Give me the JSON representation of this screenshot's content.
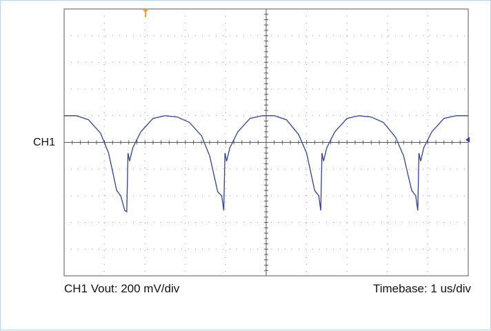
{
  "channel_label": "CH1",
  "caption_left": "CH1 Vout: 200 mV/div",
  "caption_right": "Timebase: 1 us/div",
  "colors": {
    "trace": "#2d3f9c",
    "trigger_marker": "#f0a030",
    "grid": "#8a8a8a",
    "frame": "#555555"
  },
  "chart_data": {
    "type": "line",
    "title": "",
    "grid": true,
    "divisions": {
      "x": 10,
      "y": 10
    },
    "xlim": [
      0,
      10
    ],
    "ylim": [
      -5,
      5
    ],
    "x_units": "div",
    "y_units": "div",
    "series": [
      {
        "x": [
          0,
          0.3,
          0.6,
          0.9,
          1.1,
          1.3,
          1.4,
          1.5,
          1.55,
          1.58,
          1.62,
          1.7,
          1.9,
          2.2,
          2.5,
          2.8,
          3.1,
          3.4,
          3.6,
          3.8,
          3.9,
          3.95,
          3.98,
          4.02,
          4.1,
          4.3,
          4.6,
          4.9,
          5.2,
          5.5,
          5.8,
          6.0,
          6.2,
          6.3,
          6.35,
          6.38,
          6.42,
          6.5,
          6.7,
          7.0,
          7.3,
          7.6,
          7.9,
          8.2,
          8.4,
          8.6,
          8.7,
          8.75,
          8.78,
          8.82,
          8.9,
          9.1,
          9.4,
          9.7,
          10.0
        ],
        "y": [
          1.0,
          1.0,
          0.85,
          0.35,
          -0.4,
          -1.8,
          -2.0,
          -2.55,
          -2.6,
          -0.4,
          -0.7,
          -0.2,
          0.4,
          0.9,
          1.0,
          0.95,
          0.75,
          0.25,
          -0.5,
          -1.85,
          -2.0,
          -2.55,
          -0.4,
          -0.7,
          -0.2,
          0.4,
          0.9,
          1.0,
          1.0,
          0.85,
          0.3,
          -0.4,
          -1.8,
          -2.0,
          -2.55,
          -0.4,
          -0.7,
          -0.2,
          0.4,
          0.9,
          1.0,
          0.95,
          0.75,
          0.2,
          -0.5,
          -1.8,
          -2.0,
          -2.55,
          -0.4,
          -0.7,
          -0.2,
          0.4,
          0.9,
          1.0,
          1.0
        ]
      }
    ]
  }
}
